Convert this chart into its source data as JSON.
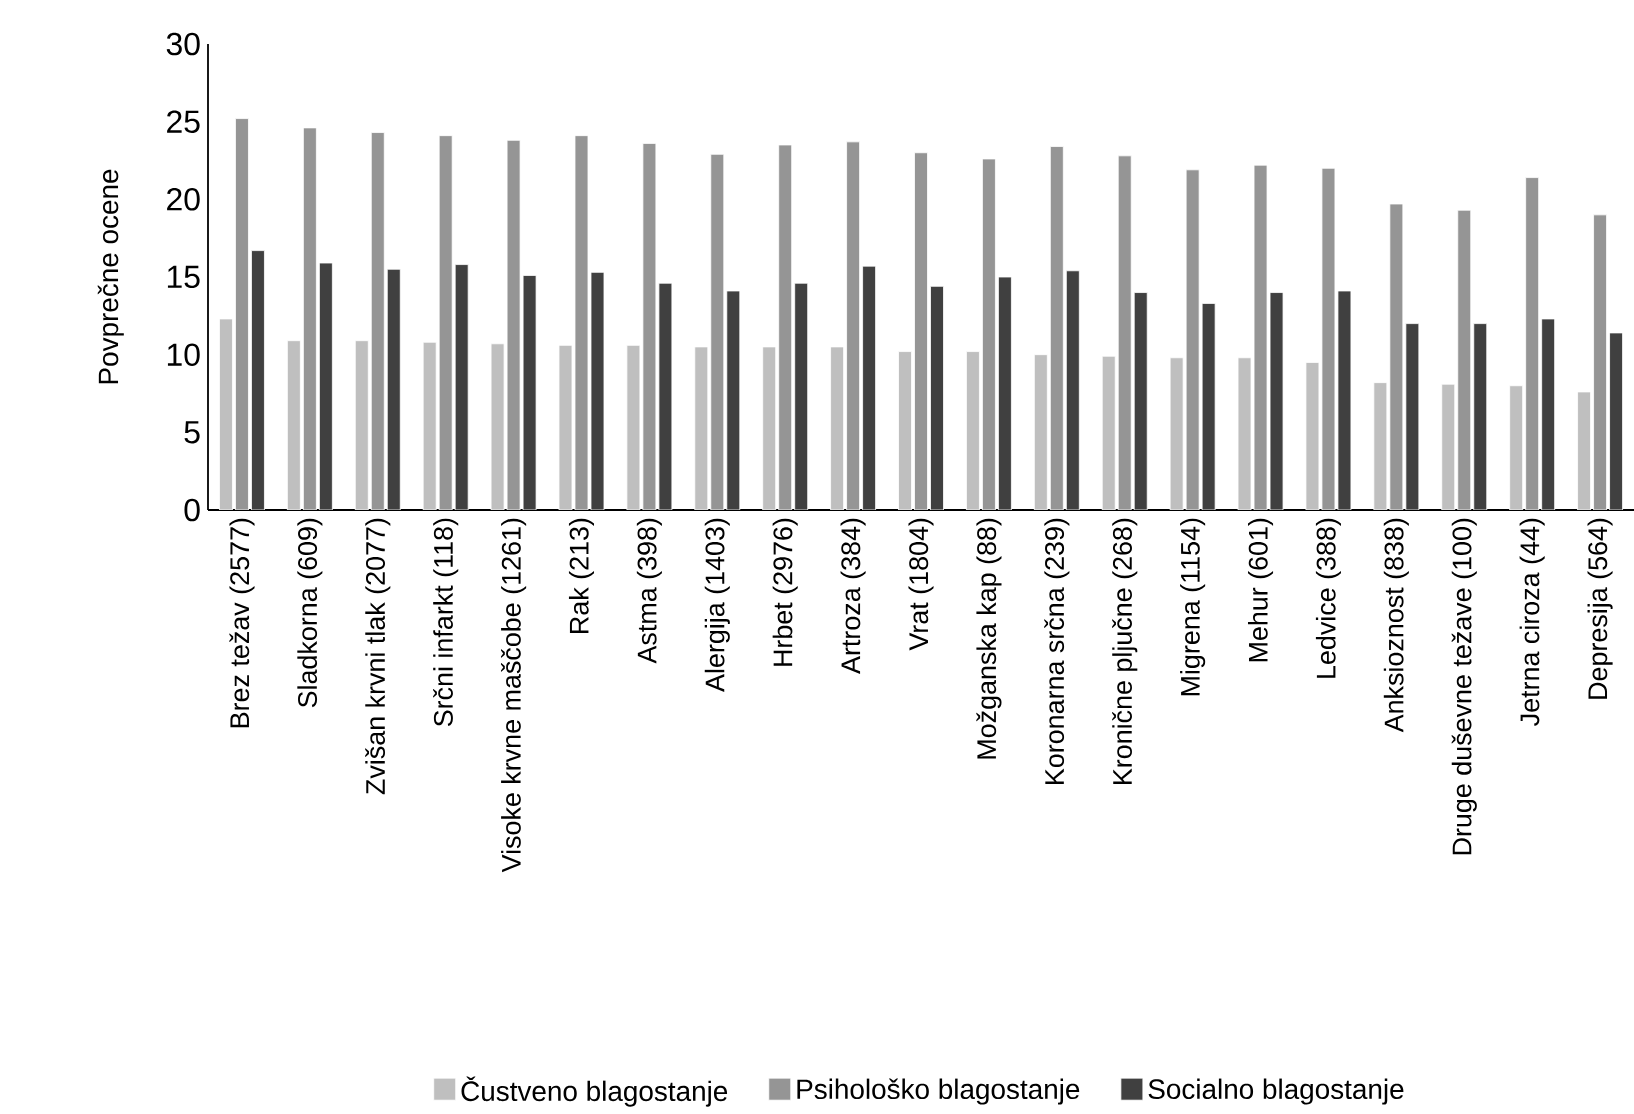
{
  "chart_data": {
    "type": "bar",
    "ylabel": "Povprečne ocene",
    "categories": [
      "Brez težav (2577)",
      "Sladkorna (609)",
      "Zvišan krvni tlak (2077)",
      "Srčni infarkt (118)",
      "Visoke krvne maščobe (1261)",
      "Rak (213)",
      "Astma (398)",
      "Alergija (1403)",
      "Hrbet (2976)",
      "Artroza (384)",
      "Vrat (1804)",
      "Možganska kap (88)",
      "Koronarna srčna (239)",
      "Kronične pljučne (268)",
      "Migrena (1154)",
      "Mehur (601)",
      "Ledvice (388)",
      "Anksioznost (838)",
      "Druge duševne težave (100)",
      "Jetrna ciroza (44)",
      "Depresija (564)"
    ],
    "series": [
      {
        "name": "Čustveno blagostanje",
        "color": "#bfbfbf",
        "values": [
          12.3,
          10.9,
          10.9,
          10.8,
          10.7,
          10.6,
          10.6,
          10.5,
          10.5,
          10.5,
          10.2,
          10.2,
          10.0,
          9.9,
          9.8,
          9.8,
          9.5,
          8.2,
          8.1,
          8.0,
          7.6
        ]
      },
      {
        "name": "Psihološko blagostanje",
        "color": "#959595",
        "values": [
          25.2,
          24.6,
          24.3,
          24.1,
          23.8,
          24.1,
          23.6,
          22.9,
          23.5,
          23.7,
          23.0,
          22.6,
          23.4,
          22.8,
          21.9,
          22.2,
          22.0,
          19.7,
          19.3,
          21.4,
          19.0
        ]
      },
      {
        "name": "Socialno blagostanje",
        "color": "#404040",
        "values": [
          16.7,
          15.9,
          15.5,
          15.8,
          15.1,
          15.3,
          14.6,
          14.1,
          14.6,
          15.7,
          14.4,
          15.0,
          15.4,
          14.0,
          13.3,
          14.0,
          14.1,
          12.0,
          12.0,
          12.3,
          11.4
        ]
      }
    ],
    "ylim": [
      0,
      30
    ],
    "yticks": [
      0,
      5,
      10,
      15,
      20,
      25,
      30
    ],
    "grid": false,
    "legend": "bottom"
  }
}
